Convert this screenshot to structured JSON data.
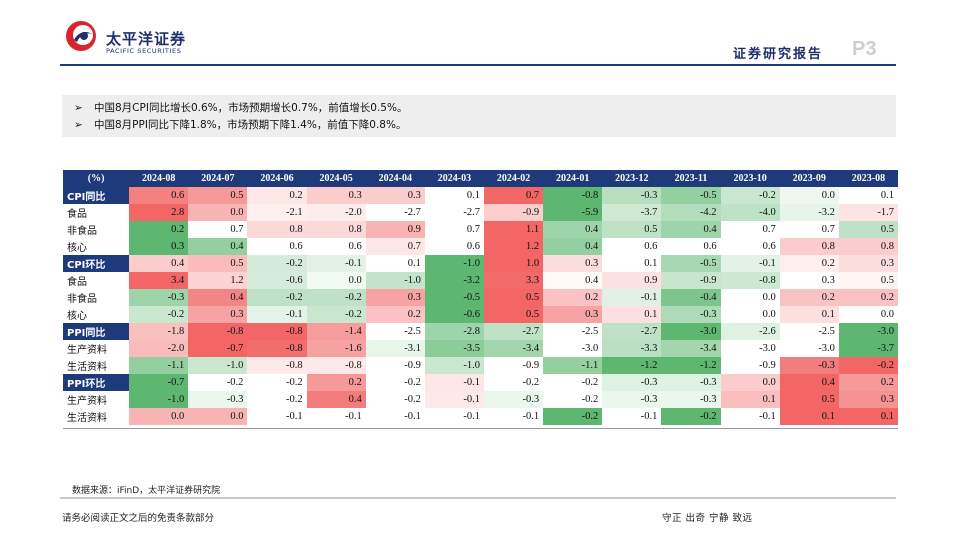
{
  "header": {
    "brand_cn": "太平洋证券",
    "brand_en": "PACIFIC SECURITIES",
    "report_title": "证券研究报告",
    "page_no": "P3"
  },
  "summary": {
    "bullets": [
      "中国8月CPI同比增长0.6%，市场预期增长0.7%，前值增长0.5%。",
      "中国8月PPI同比下降1.8%，市场预期下降1.4%，前值下降0.8%。"
    ]
  },
  "table": {
    "corner": "(%)",
    "columns": [
      "2024-08",
      "2024-07",
      "2024-06",
      "2024-05",
      "2024-04",
      "2024-03",
      "2024-02",
      "2024-01",
      "2023-12",
      "2023-11",
      "2023-10",
      "2023-09",
      "2023-08"
    ],
    "rows": [
      {
        "label": "CPI同比",
        "group": true,
        "values": [
          "0.6",
          "0.5",
          "0.2",
          "0.3",
          "0.3",
          "0.1",
          "0.7",
          "-0.8",
          "-0.3",
          "-0.5",
          "-0.2",
          "0.0",
          "0.1"
        ]
      },
      {
        "label": "食品",
        "group": false,
        "values": [
          "2.8",
          "0.0",
          "-2.1",
          "-2.0",
          "-2.7",
          "-2.7",
          "-0.9",
          "-5.9",
          "-3.7",
          "-4.2",
          "-4.0",
          "-3.2",
          "-1.7"
        ]
      },
      {
        "label": "非食品",
        "group": false,
        "values": [
          "0.2",
          "0.7",
          "0.8",
          "0.8",
          "0.9",
          "0.7",
          "1.1",
          "0.4",
          "0.5",
          "0.4",
          "0.7",
          "0.7",
          "0.5"
        ]
      },
      {
        "label": "核心",
        "group": false,
        "values": [
          "0.3",
          "0.4",
          "0.6",
          "0.6",
          "0.7",
          "0.6",
          "1.2",
          "0.4",
          "0.6",
          "0.6",
          "0.6",
          "0.8",
          "0.8"
        ]
      },
      {
        "label": "CPI环比",
        "group": true,
        "values": [
          "0.4",
          "0.5",
          "-0.2",
          "-0.1",
          "0.1",
          "-1.0",
          "1.0",
          "0.3",
          "0.1",
          "-0.5",
          "-0.1",
          "0.2",
          "0.3"
        ]
      },
      {
        "label": "食品",
        "group": false,
        "values": [
          "3.4",
          "1.2",
          "-0.6",
          "0.0",
          "-1.0",
          "-3.2",
          "3.3",
          "0.4",
          "0.9",
          "-0.9",
          "-0.8",
          "0.3",
          "0.5"
        ]
      },
      {
        "label": "非食品",
        "group": false,
        "values": [
          "-0.3",
          "0.4",
          "-0.2",
          "-0.2",
          "0.3",
          "-0.5",
          "0.5",
          "0.2",
          "-0.1",
          "-0.4",
          "0.0",
          "0.2",
          "0.2"
        ]
      },
      {
        "label": "核心",
        "group": false,
        "values": [
          "-0.2",
          "0.3",
          "-0.1",
          "-0.2",
          "0.2",
          "-0.6",
          "0.5",
          "0.3",
          "0.1",
          "-0.3",
          "0.0",
          "0.1",
          "0.0"
        ]
      },
      {
        "label": "PPI同比",
        "group": true,
        "values": [
          "-1.8",
          "-0.8",
          "-0.8",
          "-1.4",
          "-2.5",
          "-2.8",
          "-2.7",
          "-2.5",
          "-2.7",
          "-3.0",
          "-2.6",
          "-2.5",
          "-3.0"
        ]
      },
      {
        "label": "生产资料",
        "group": false,
        "values": [
          "-2.0",
          "-0.7",
          "-0.8",
          "-1.6",
          "-3.1",
          "-3.5",
          "-3.4",
          "-3.0",
          "-3.3",
          "-3.4",
          "-3.0",
          "-3.0",
          "-3.7"
        ]
      },
      {
        "label": "生活资料",
        "group": false,
        "values": [
          "-1.1",
          "-1.0",
          "-0.8",
          "-0.8",
          "-0.9",
          "-1.0",
          "-0.9",
          "-1.1",
          "-1.2",
          "-1.2",
          "-0.9",
          "-0.3",
          "-0.2"
        ]
      },
      {
        "label": "PPI环比",
        "group": true,
        "values": [
          "-0.7",
          "-0.2",
          "-0.2",
          "0.2",
          "-0.2",
          "-0.1",
          "-0.2",
          "-0.2",
          "-0.3",
          "-0.3",
          "0.0",
          "0.4",
          "0.2"
        ]
      },
      {
        "label": "生产资料",
        "group": false,
        "values": [
          "-1.0",
          "-0.3",
          "-0.2",
          "0.4",
          "-0.2",
          "-0.1",
          "-0.3",
          "-0.2",
          "-0.3",
          "-0.3",
          "0.1",
          "0.5",
          "0.3"
        ]
      },
      {
        "label": "生活资料",
        "group": false,
        "values": [
          "0.0",
          "0.0",
          "-0.1",
          "-0.1",
          "-0.1",
          "-0.1",
          "-0.1",
          "-0.2",
          "-0.1",
          "-0.2",
          "-0.1",
          "0.1",
          "0.1"
        ]
      }
    ],
    "colors": {
      "high": "#f05555",
      "low": "#4caf60",
      "mid": "#ffffff",
      "header": "#1f3a7a"
    }
  },
  "footer": {
    "source": "数据来源：iFinD，太平洋证券研究院",
    "disclaimer": "请务必阅读正文之后的免责条款部分",
    "motto": "守正 出奇 宁静 致远"
  }
}
